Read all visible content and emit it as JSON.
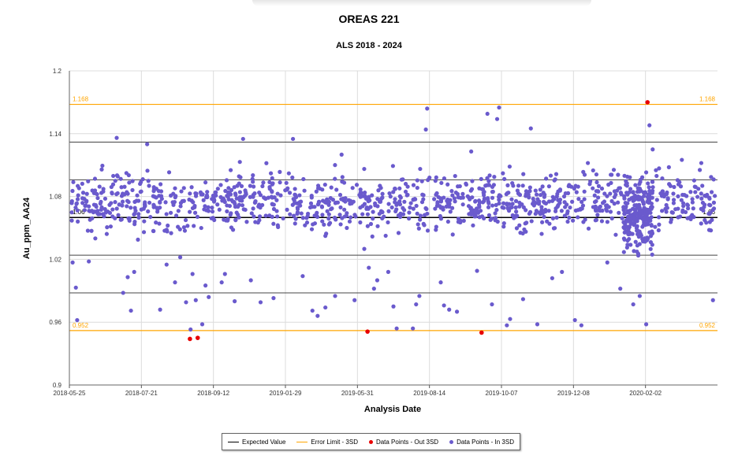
{
  "chart_data": {
    "type": "scatter",
    "title": "OREAS 221",
    "subtitle": "ALS 2018 - 2024",
    "xlabel": "Analysis Date",
    "ylabel": "Au_ppm_AA24",
    "ylim": [
      0.9,
      1.2
    ],
    "yticks": [
      "0.9",
      "0.96",
      "1.02",
      "1.08",
      "1.14",
      "1.2"
    ],
    "xticks": [
      "2018-05-25",
      "2018-07-21",
      "2018-09-12",
      "2019-01-29",
      "2019-05-31",
      "2019-08-14",
      "2019-10-07",
      "2019-12-08",
      "2020-02-02"
    ],
    "expected_value": 1.06,
    "expected_label": "1.06",
    "upper_limit": 1.168,
    "upper_label": "1.168",
    "lower_limit": 0.952,
    "lower_label": "0.952",
    "sd_lines": [
      1.024,
      1.096,
      0.988,
      1.132
    ],
    "grid": true,
    "colors": {
      "expected": "#000000",
      "limit": "#ffa500",
      "out": "#e80000",
      "in": "#6a5acd",
      "limit_text": "#ffa500"
    },
    "legend": [
      {
        "label": "Expected Value",
        "kind": "line",
        "color": "#000000"
      },
      {
        "label": "Error Limit - 3SD",
        "kind": "line",
        "color": "#ffa500"
      },
      {
        "label": "Data Points - Out 3SD",
        "kind": "dot",
        "color": "#e80000"
      },
      {
        "label": "Data Points - In 3SD",
        "kind": "dot",
        "color": "#6a5acd"
      }
    ],
    "series": [
      {
        "name": "Data Points - Out 3SD",
        "points": [
          [
            0.186,
            0.944
          ],
          [
            0.198,
            0.945
          ],
          [
            0.46,
            0.951
          ],
          [
            0.636,
            0.95
          ],
          [
            0.892,
            1.17
          ]
        ]
      },
      {
        "name": "Data Points - In 3SD",
        "points": [
          [
            0.005,
            1.017
          ],
          [
            0.01,
            0.993
          ],
          [
            0.012,
            0.962
          ],
          [
            0.03,
            1.018
          ],
          [
            0.04,
            1.04
          ],
          [
            0.055,
            1.068
          ],
          [
            0.062,
            1.072
          ],
          [
            0.073,
            1.136
          ],
          [
            0.083,
            0.988
          ],
          [
            0.09,
            1.003
          ],
          [
            0.095,
            0.971
          ],
          [
            0.1,
            1.008
          ],
          [
            0.115,
            1.046
          ],
          [
            0.12,
            1.13
          ],
          [
            0.13,
            1.072
          ],
          [
            0.14,
            0.972
          ],
          [
            0.15,
            1.015
          ],
          [
            0.157,
            1.045
          ],
          [
            0.163,
            0.998
          ],
          [
            0.171,
            1.022
          ],
          [
            0.18,
            0.979
          ],
          [
            0.187,
            0.953
          ],
          [
            0.19,
            1.006
          ],
          [
            0.195,
            0.981
          ],
          [
            0.205,
            0.958
          ],
          [
            0.21,
            0.995
          ],
          [
            0.215,
            0.984
          ],
          [
            0.235,
            0.998
          ],
          [
            0.24,
            1.006
          ],
          [
            0.255,
            0.98
          ],
          [
            0.263,
            1.113
          ],
          [
            0.268,
            1.135
          ],
          [
            0.28,
            1.0
          ],
          [
            0.295,
            0.979
          ],
          [
            0.315,
            0.983
          ],
          [
            0.345,
            1.135
          ],
          [
            0.36,
            1.004
          ],
          [
            0.375,
            0.971
          ],
          [
            0.383,
            0.966
          ],
          [
            0.395,
            0.974
          ],
          [
            0.41,
            0.985
          ],
          [
            0.42,
            1.12
          ],
          [
            0.44,
            0.981
          ],
          [
            0.455,
            1.03
          ],
          [
            0.462,
            1.012
          ],
          [
            0.47,
            0.992
          ],
          [
            0.475,
            1.0
          ],
          [
            0.492,
            1.008
          ],
          [
            0.5,
            0.975
          ],
          [
            0.505,
            0.954
          ],
          [
            0.53,
            0.954
          ],
          [
            0.535,
            0.977
          ],
          [
            0.54,
            0.985
          ],
          [
            0.55,
            1.144
          ],
          [
            0.552,
            1.164
          ],
          [
            0.573,
            0.998
          ],
          [
            0.578,
            0.976
          ],
          [
            0.586,
            0.972
          ],
          [
            0.598,
            0.97
          ],
          [
            0.62,
            1.123
          ],
          [
            0.629,
            1.009
          ],
          [
            0.645,
            1.159
          ],
          [
            0.652,
            0.977
          ],
          [
            0.66,
            1.154
          ],
          [
            0.663,
            1.165
          ],
          [
            0.675,
            0.957
          ],
          [
            0.68,
            0.963
          ],
          [
            0.7,
            0.982
          ],
          [
            0.712,
            1.145
          ],
          [
            0.722,
            0.958
          ],
          [
            0.745,
            1.002
          ],
          [
            0.76,
            1.008
          ],
          [
            0.78,
            0.962
          ],
          [
            0.79,
            0.957
          ],
          [
            0.8,
            1.112
          ],
          [
            0.83,
            1.017
          ],
          [
            0.85,
            0.992
          ],
          [
            0.87,
            0.977
          ],
          [
            0.88,
            0.985
          ],
          [
            0.89,
            0.958
          ],
          [
            0.895,
            1.148
          ],
          [
            0.9,
            1.125
          ],
          [
            0.925,
            1.108
          ],
          [
            0.945,
            1.115
          ],
          [
            0.975,
            1.112
          ],
          [
            0.993,
            0.981
          ]
        ]
      }
    ]
  }
}
